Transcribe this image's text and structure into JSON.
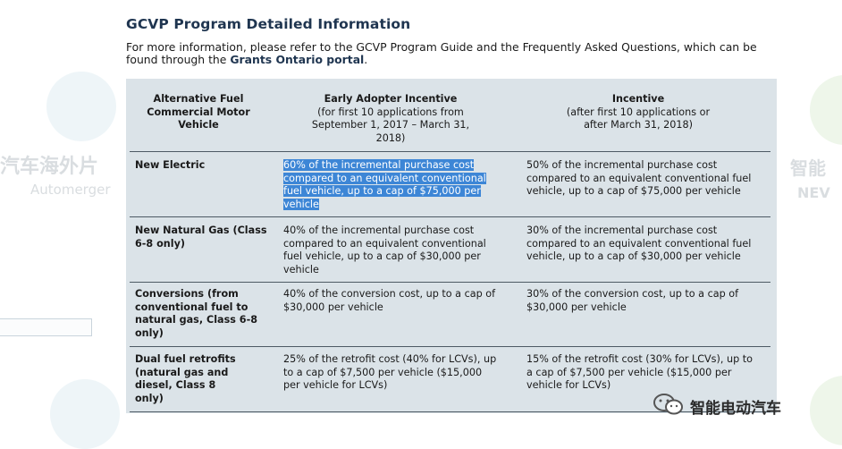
{
  "page": {
    "title": "GCVP Program Detailed Information",
    "intro_text": "For more information, please refer to the GCVP Program Guide and the Frequently Asked Questions, which can be found through the",
    "portal_link": "Grants Ontario portal",
    "intro_end": "."
  },
  "table": {
    "headers": {
      "col1": "Alternative Fuel Commercial Motor Vehicle",
      "col2_title": "Early Adopter Incentive",
      "col2_sub": "(for first 10 applications from September 1, 2017 – March 31, 2018)",
      "col3_title": "Incentive",
      "col3_sub": "(after first 10 applications or after March 31, 2018)"
    },
    "rows": [
      {
        "vehicle": "New Electric",
        "early": "60% of the incremental purchase cost compared to an equivalent conventional fuel vehicle, up to a cap of $75,000 per vehicle",
        "incentive": "50% of the incremental purchase cost compared to an equivalent conventional fuel vehicle, up to a cap of $75,000 per vehicle"
      },
      {
        "vehicle": "New Natural Gas (Class 6-8 only)",
        "early": "40% of the incremental purchase cost compared to an equivalent conventional fuel vehicle, up to a cap of $30,000 per vehicle",
        "incentive": "30% of the incremental purchase cost compared to an equivalent conventional fuel vehicle, up to a cap of $30,000 per vehicle"
      },
      {
        "vehicle": "Conversions (from conventional fuel to natural gas, Class 6-8 only)",
        "early": "40% of the conversion cost, up to a cap of $30,000 per vehicle",
        "incentive": "30% of the conversion cost, up to a cap of $30,000 per vehicle"
      },
      {
        "vehicle": "Dual fuel retrofits (natural gas and diesel, Class 8 only)",
        "early": "25% of the retrofit cost (40% for LCVs), up to a cap of $7,500 per vehicle ($15,000 per vehicle for LCVs)",
        "incentive": "15% of the retrofit cost (30% for LCVs), up to a cap of $7,500 per vehicle ($15,000 per vehicle for LCVs)"
      }
    ]
  },
  "watermarks": {
    "left_cn": "汽车海外片",
    "left_en": "Automerger",
    "right_cn": "智能",
    "right_en": "NEV",
    "wechat_label": "智能电动汽车",
    "wechat_icon": "wechat-icon"
  },
  "colors": {
    "title": "#1f3550",
    "table_bg": "#dbe3e8",
    "selection": "#3d86d6"
  }
}
